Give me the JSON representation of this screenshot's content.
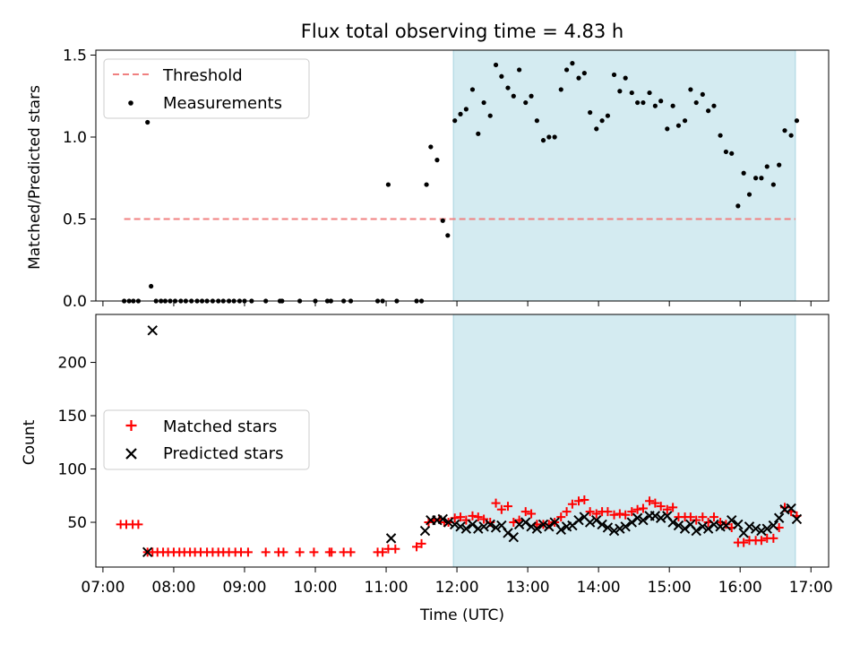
{
  "chart_data": [
    {
      "type": "scatter",
      "title": "Flux total observing time = 4.83 h",
      "xlabel": "",
      "ylabel": "Matched/Predicted stars",
      "xlim": [
        6.9,
        17.25
      ],
      "ylim": [
        0,
        1.53
      ],
      "yticks": [
        0.0,
        0.5,
        1.0,
        1.5
      ],
      "ytick_labels": [
        "0.0",
        "0.5",
        "1.0",
        "1.5"
      ],
      "legend_position": "upper-left",
      "legend": [
        "Threshold",
        "Measurements"
      ],
      "shaded_region": {
        "x": [
          11.95,
          16.78
        ],
        "color": "#d4ebf1"
      },
      "threshold": {
        "name": "Threshold",
        "y": 0.5,
        "x": [
          7.3,
          16.78
        ],
        "color": "#f08080",
        "style": "dashed"
      },
      "series": [
        {
          "name": "Measurements",
          "color": "#000000",
          "x": [
            7.3,
            7.37,
            7.43,
            7.5,
            7.63,
            7.68,
            7.75,
            7.82,
            7.88,
            7.95,
            8.02,
            8.1,
            8.17,
            8.25,
            8.33,
            8.4,
            8.47,
            8.55,
            8.63,
            8.7,
            8.78,
            8.85,
            8.93,
            9.0,
            9.1,
            9.3,
            9.5,
            9.53,
            9.78,
            10.0,
            10.17,
            10.22,
            10.4,
            10.5,
            10.88,
            10.95,
            11.03,
            11.15,
            11.43,
            11.5,
            11.57,
            11.63,
            11.72,
            11.8,
            11.87,
            11.97,
            12.05,
            12.13,
            12.22,
            12.3,
            12.38,
            12.47,
            12.55,
            12.63,
            12.72,
            12.8,
            12.88,
            12.97,
            13.05,
            13.13,
            13.22,
            13.3,
            13.38,
            13.47,
            13.55,
            13.63,
            13.72,
            13.8,
            13.88,
            13.97,
            14.05,
            14.13,
            14.22,
            14.3,
            14.38,
            14.47,
            14.55,
            14.63,
            14.72,
            14.8,
            14.88,
            14.97,
            15.05,
            15.13,
            15.22,
            15.3,
            15.38,
            15.47,
            15.55,
            15.63,
            15.72,
            15.8,
            15.88,
            15.97,
            16.05,
            16.13,
            16.22,
            16.3,
            16.38,
            16.47,
            16.55,
            16.63,
            16.72,
            16.8
          ],
          "y": [
            0,
            0,
            0,
            0,
            1.09,
            0.09,
            0,
            0,
            0,
            0,
            0,
            0,
            0,
            0,
            0,
            0,
            0,
            0,
            0,
            0,
            0,
            0,
            0,
            0,
            0,
            0,
            0,
            0,
            0,
            0,
            0,
            0,
            0,
            0,
            0,
            0,
            0.71,
            0,
            0,
            0,
            0.71,
            0.94,
            0.86,
            0.49,
            0.4,
            1.1,
            1.14,
            1.17,
            1.29,
            1.02,
            1.21,
            1.13,
            1.44,
            1.37,
            1.3,
            1.25,
            1.41,
            1.21,
            1.25,
            1.1,
            0.98,
            1.0,
            1.0,
            1.29,
            1.41,
            1.45,
            1.36,
            1.39,
            1.15,
            1.05,
            1.1,
            1.13,
            1.38,
            1.28,
            1.36,
            1.27,
            1.21,
            1.21,
            1.27,
            1.19,
            1.22,
            1.05,
            1.19,
            1.07,
            1.1,
            1.29,
            1.21,
            1.26,
            1.16,
            1.19,
            1.01,
            0.91,
            0.9,
            0.58,
            0.78,
            0.65,
            0.75,
            0.75,
            0.82,
            0.71,
            0.83,
            1.04,
            1.01,
            1.1
          ]
        }
      ]
    },
    {
      "type": "scatter",
      "title": "",
      "xlabel": "Time (UTC)",
      "ylabel": "Count",
      "xlim": [
        6.9,
        17.25
      ],
      "ylim": [
        8,
        245
      ],
      "yticks": [
        50,
        100,
        150,
        200
      ],
      "ytick_labels": [
        "50",
        "100",
        "150",
        "200"
      ],
      "xticks": [
        7,
        8,
        9,
        10,
        11,
        12,
        13,
        14,
        15,
        16,
        17
      ],
      "xtick_labels": [
        "07:00",
        "08:00",
        "09:00",
        "10:00",
        "11:00",
        "12:00",
        "13:00",
        "14:00",
        "15:00",
        "16:00",
        "17:00"
      ],
      "legend_position": "center-left",
      "legend": [
        "Matched stars",
        "Predicted stars"
      ],
      "shaded_region": {
        "x": [
          11.95,
          16.78
        ],
        "color": "#d4ebf1"
      },
      "series": [
        {
          "name": "Matched stars",
          "color": "#ff0000",
          "marker": "plus",
          "x": [
            7.25,
            7.33,
            7.42,
            7.5,
            7.63,
            7.7,
            7.77,
            7.85,
            7.92,
            8.0,
            8.08,
            8.15,
            8.23,
            8.3,
            8.38,
            8.47,
            8.55,
            8.63,
            8.7,
            8.78,
            8.87,
            8.95,
            9.05,
            9.3,
            9.48,
            9.55,
            9.78,
            9.98,
            10.2,
            10.23,
            10.4,
            10.5,
            10.88,
            10.95,
            11.03,
            11.13,
            11.43,
            11.5,
            11.6,
            11.67,
            11.75,
            11.82,
            11.88,
            11.97,
            12.05,
            12.13,
            12.22,
            12.3,
            12.38,
            12.47,
            12.55,
            12.63,
            12.72,
            12.8,
            12.88,
            12.97,
            13.05,
            13.13,
            13.22,
            13.3,
            13.38,
            13.47,
            13.55,
            13.63,
            13.72,
            13.8,
            13.88,
            13.97,
            14.05,
            14.13,
            14.22,
            14.3,
            14.38,
            14.47,
            14.55,
            14.63,
            14.72,
            14.8,
            14.88,
            14.97,
            15.05,
            15.13,
            15.22,
            15.3,
            15.38,
            15.47,
            15.55,
            15.63,
            15.72,
            15.8,
            15.88,
            15.97,
            16.05,
            16.13,
            16.22,
            16.3,
            16.38,
            16.47,
            16.55,
            16.63,
            16.72,
            16.8
          ],
          "y": [
            48,
            48,
            48,
            48,
            22,
            22,
            22,
            22,
            22,
            22,
            22,
            22,
            22,
            22,
            22,
            22,
            22,
            22,
            22,
            22,
            22,
            22,
            22,
            22,
            22,
            22,
            22,
            22,
            22,
            22,
            22,
            22,
            22,
            22,
            25,
            25,
            27,
            30,
            50,
            52,
            53,
            50,
            50,
            54,
            55,
            52,
            56,
            55,
            53,
            50,
            68,
            62,
            65,
            50,
            52,
            60,
            58,
            48,
            48,
            48,
            50,
            55,
            60,
            67,
            70,
            71,
            60,
            58,
            60,
            60,
            57,
            58,
            57,
            60,
            62,
            63,
            70,
            68,
            65,
            62,
            64,
            55,
            55,
            55,
            52,
            55,
            50,
            55,
            50,
            48,
            45,
            31,
            31,
            33,
            33,
            33,
            35,
            35,
            45,
            64,
            60,
            56
          ]
        },
        {
          "name": "Predicted stars",
          "color": "#000000",
          "marker": "x",
          "x": [
            7.63,
            7.7,
            11.07,
            11.55,
            11.63,
            11.72,
            11.8,
            11.88,
            11.97,
            12.05,
            12.13,
            12.22,
            12.3,
            12.38,
            12.47,
            12.55,
            12.63,
            12.72,
            12.8,
            12.88,
            12.97,
            13.05,
            13.13,
            13.22,
            13.3,
            13.38,
            13.47,
            13.55,
            13.63,
            13.72,
            13.8,
            13.88,
            13.97,
            14.05,
            14.13,
            14.22,
            14.3,
            14.38,
            14.47,
            14.55,
            14.63,
            14.72,
            14.8,
            14.88,
            14.97,
            15.05,
            15.13,
            15.22,
            15.3,
            15.38,
            15.47,
            15.55,
            15.63,
            15.72,
            15.8,
            15.88,
            15.97,
            16.05,
            16.13,
            16.22,
            16.3,
            16.38,
            16.47,
            16.55,
            16.63,
            16.72,
            16.8
          ],
          "y": [
            22,
            230,
            35,
            42,
            52,
            52,
            53,
            50,
            48,
            46,
            44,
            48,
            44,
            46,
            48,
            45,
            47,
            40,
            36,
            48,
            50,
            46,
            44,
            48,
            46,
            50,
            43,
            46,
            47,
            52,
            55,
            50,
            52,
            48,
            45,
            42,
            44,
            46,
            50,
            54,
            52,
            56,
            56,
            54,
            56,
            50,
            47,
            44,
            48,
            42,
            46,
            44,
            48,
            46,
            47,
            52,
            48,
            40,
            46,
            44,
            42,
            44,
            47,
            54,
            62,
            63,
            53
          ]
        }
      ]
    }
  ]
}
